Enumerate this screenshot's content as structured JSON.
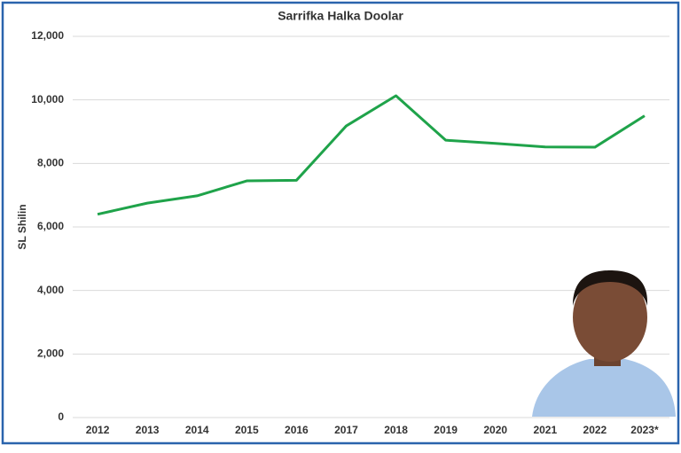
{
  "chart_data": {
    "type": "line",
    "title": "Sarrifka Halka Doolar",
    "y_label": "SL Shilin",
    "categories": [
      "2012",
      "2013",
      "2014",
      "2015",
      "2016",
      "2017",
      "2018",
      "2019",
      "2020",
      "2021",
      "2022",
      "2023*"
    ],
    "series": [
      {
        "name": "SL Shilin",
        "color": "#1fa34a",
        "values": [
          6400,
          6750,
          6980,
          7450,
          7470,
          9180,
          10130,
          8730,
          8630,
          8520,
          8510,
          9500
        ]
      }
    ],
    "ylim": [
      0,
      12000
    ],
    "yticks": [
      0,
      {
        "value": 2000,
        "label": "2,000"
      },
      {
        "value": 4000,
        "label": "4,000"
      },
      {
        "value": 6000,
        "label": "6,000"
      },
      {
        "value": 8000,
        "label": "8,000"
      },
      {
        "value": 10000,
        "label": "10,000"
      },
      {
        "value": 12000,
        "label": "12,000"
      }
    ],
    "grid": true
  }
}
